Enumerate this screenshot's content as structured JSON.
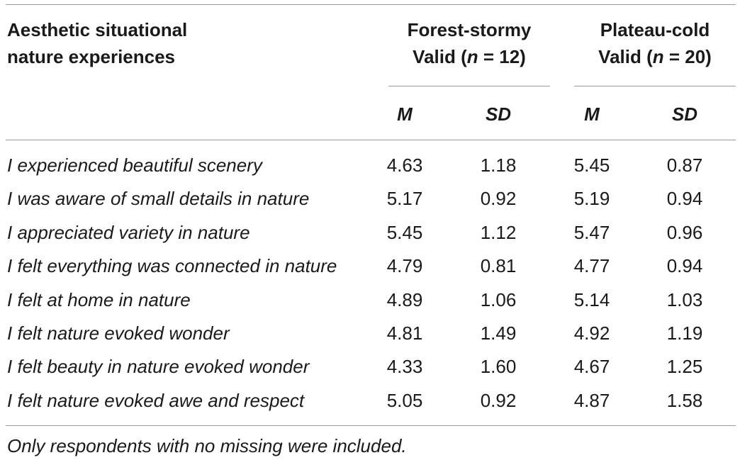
{
  "table": {
    "row_header_line1": "Aesthetic situational",
    "row_header_line2": "nature experiences",
    "groups": [
      {
        "name": "Forest-stormy",
        "valid_prefix": "Valid (",
        "n_symbol": "n",
        "valid_suffix": " = 12)"
      },
      {
        "name": "Plateau-cold",
        "valid_prefix": "Valid (",
        "n_symbol": "n",
        "valid_suffix": " = 20)"
      }
    ],
    "stat_labels": [
      "M",
      "SD",
      "M",
      "SD"
    ],
    "rows": [
      {
        "label": "I experienced beautiful scenery",
        "values": [
          "4.63",
          "1.18",
          "5.45",
          "0.87"
        ]
      },
      {
        "label": "I was aware of small details in nature",
        "values": [
          "5.17",
          "0.92",
          "5.19",
          "0.94"
        ]
      },
      {
        "label": "I appreciated variety in nature",
        "values": [
          "5.45",
          "1.12",
          "5.47",
          "0.96"
        ]
      },
      {
        "label": "I felt everything was connected in nature",
        "values": [
          "4.79",
          "0.81",
          "4.77",
          "0.94"
        ]
      },
      {
        "label": "I felt at home in nature",
        "values": [
          "4.89",
          "1.06",
          "5.14",
          "1.03"
        ]
      },
      {
        "label": "I felt nature evoked wonder",
        "values": [
          "4.81",
          "1.49",
          "4.92",
          "1.19"
        ]
      },
      {
        "label": "I felt beauty in nature evoked wonder",
        "values": [
          "4.33",
          "1.60",
          "4.67",
          "1.25"
        ]
      },
      {
        "label": "I felt nature evoked awe and respect",
        "values": [
          "5.05",
          "0.92",
          "4.87",
          "1.58"
        ]
      }
    ],
    "footnote": "Only respondents with no missing were included."
  }
}
